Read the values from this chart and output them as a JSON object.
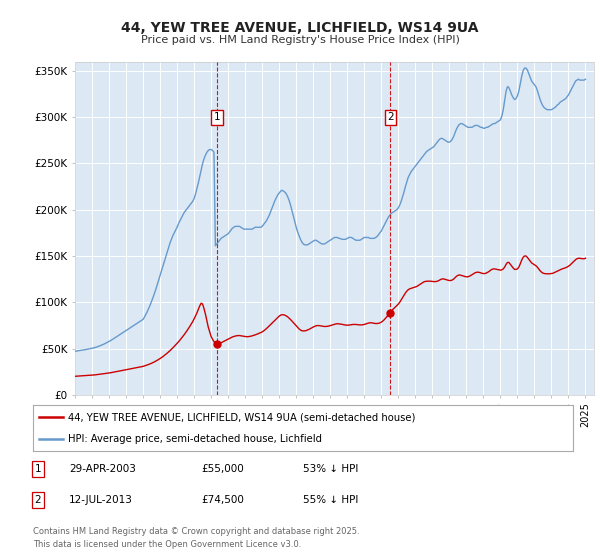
{
  "title": "44, YEW TREE AVENUE, LICHFIELD, WS14 9UA",
  "subtitle": "Price paid vs. HM Land Registry's House Price Index (HPI)",
  "ylim": [
    0,
    360000
  ],
  "yticks": [
    0,
    50000,
    100000,
    150000,
    200000,
    250000,
    300000,
    350000
  ],
  "ytick_labels": [
    "£0",
    "£50K",
    "£100K",
    "£150K",
    "£200K",
    "£250K",
    "£300K",
    "£350K"
  ],
  "background_color": "#ffffff",
  "plot_bg_color": "#dce9f5",
  "grid_color": "#ffffff",
  "purchase_dates": [
    2003.33,
    2013.54
  ],
  "purchase_prices": [
    55000,
    74500
  ],
  "purchase_labels": [
    "1",
    "2"
  ],
  "legend_line1": "44, YEW TREE AVENUE, LICHFIELD, WS14 9UA (semi-detached house)",
  "legend_line2": "HPI: Average price, semi-detached house, Lichfield",
  "line_red": "#cc0000",
  "line_blue": "#6699cc",
  "footer_line1": "Contains HM Land Registry data © Crown copyright and database right 2025.",
  "footer_line2": "This data is licensed under the Open Government Licence v3.0.",
  "table_rows": [
    {
      "label": "1",
      "date": "29-APR-2003",
      "price": "£55,000",
      "hpi": "53% ↓ HPI"
    },
    {
      "label": "2",
      "date": "12-JUL-2013",
      "price": "£74,500",
      "hpi": "55% ↓ HPI"
    }
  ],
  "hpi_years": [
    1995.0,
    1995.083,
    1995.167,
    1995.25,
    1995.333,
    1995.417,
    1995.5,
    1995.583,
    1995.667,
    1995.75,
    1995.833,
    1995.917,
    1996.0,
    1996.083,
    1996.167,
    1996.25,
    1996.333,
    1996.417,
    1996.5,
    1996.583,
    1996.667,
    1996.75,
    1996.833,
    1996.917,
    1997.0,
    1997.083,
    1997.167,
    1997.25,
    1997.333,
    1997.417,
    1997.5,
    1997.583,
    1997.667,
    1997.75,
    1997.833,
    1997.917,
    1998.0,
    1998.083,
    1998.167,
    1998.25,
    1998.333,
    1998.417,
    1998.5,
    1998.583,
    1998.667,
    1998.75,
    1998.833,
    1998.917,
    1999.0,
    1999.083,
    1999.167,
    1999.25,
    1999.333,
    1999.417,
    1999.5,
    1999.583,
    1999.667,
    1999.75,
    1999.833,
    1999.917,
    2000.0,
    2000.083,
    2000.167,
    2000.25,
    2000.333,
    2000.417,
    2000.5,
    2000.583,
    2000.667,
    2000.75,
    2000.833,
    2000.917,
    2001.0,
    2001.083,
    2001.167,
    2001.25,
    2001.333,
    2001.417,
    2001.5,
    2001.583,
    2001.667,
    2001.75,
    2001.833,
    2001.917,
    2002.0,
    2002.083,
    2002.167,
    2002.25,
    2002.333,
    2002.417,
    2002.5,
    2002.583,
    2002.667,
    2002.75,
    2002.833,
    2002.917,
    2003.0,
    2003.083,
    2003.167,
    2003.25,
    2003.333,
    2003.417,
    2003.5,
    2003.583,
    2003.667,
    2003.75,
    2003.833,
    2003.917,
    2004.0,
    2004.083,
    2004.167,
    2004.25,
    2004.333,
    2004.417,
    2004.5,
    2004.583,
    2004.667,
    2004.75,
    2004.833,
    2004.917,
    2005.0,
    2005.083,
    2005.167,
    2005.25,
    2005.333,
    2005.417,
    2005.5,
    2005.583,
    2005.667,
    2005.75,
    2005.833,
    2005.917,
    2006.0,
    2006.083,
    2006.167,
    2006.25,
    2006.333,
    2006.417,
    2006.5,
    2006.583,
    2006.667,
    2006.75,
    2006.833,
    2006.917,
    2007.0,
    2007.083,
    2007.167,
    2007.25,
    2007.333,
    2007.417,
    2007.5,
    2007.583,
    2007.667,
    2007.75,
    2007.833,
    2007.917,
    2008.0,
    2008.083,
    2008.167,
    2008.25,
    2008.333,
    2008.417,
    2008.5,
    2008.583,
    2008.667,
    2008.75,
    2008.833,
    2008.917,
    2009.0,
    2009.083,
    2009.167,
    2009.25,
    2009.333,
    2009.417,
    2009.5,
    2009.583,
    2009.667,
    2009.75,
    2009.833,
    2009.917,
    2010.0,
    2010.083,
    2010.167,
    2010.25,
    2010.333,
    2010.417,
    2010.5,
    2010.583,
    2010.667,
    2010.75,
    2010.833,
    2010.917,
    2011.0,
    2011.083,
    2011.167,
    2011.25,
    2011.333,
    2011.417,
    2011.5,
    2011.583,
    2011.667,
    2011.75,
    2011.833,
    2011.917,
    2012.0,
    2012.083,
    2012.167,
    2012.25,
    2012.333,
    2012.417,
    2012.5,
    2012.583,
    2012.667,
    2012.75,
    2012.833,
    2012.917,
    2013.0,
    2013.083,
    2013.167,
    2013.25,
    2013.333,
    2013.417,
    2013.5,
    2013.583,
    2013.667,
    2013.75,
    2013.833,
    2013.917,
    2014.0,
    2014.083,
    2014.167,
    2014.25,
    2014.333,
    2014.417,
    2014.5,
    2014.583,
    2014.667,
    2014.75,
    2014.833,
    2014.917,
    2015.0,
    2015.083,
    2015.167,
    2015.25,
    2015.333,
    2015.417,
    2015.5,
    2015.583,
    2015.667,
    2015.75,
    2015.833,
    2015.917,
    2016.0,
    2016.083,
    2016.167,
    2016.25,
    2016.333,
    2016.417,
    2016.5,
    2016.583,
    2016.667,
    2016.75,
    2016.833,
    2016.917,
    2017.0,
    2017.083,
    2017.167,
    2017.25,
    2017.333,
    2017.417,
    2017.5,
    2017.583,
    2017.667,
    2017.75,
    2017.833,
    2017.917,
    2018.0,
    2018.083,
    2018.167,
    2018.25,
    2018.333,
    2018.417,
    2018.5,
    2018.583,
    2018.667,
    2018.75,
    2018.833,
    2018.917,
    2019.0,
    2019.083,
    2019.167,
    2019.25,
    2019.333,
    2019.417,
    2019.5,
    2019.583,
    2019.667,
    2019.75,
    2019.833,
    2019.917,
    2020.0,
    2020.083,
    2020.167,
    2020.25,
    2020.333,
    2020.417,
    2020.5,
    2020.583,
    2020.667,
    2020.75,
    2020.833,
    2020.917,
    2021.0,
    2021.083,
    2021.167,
    2021.25,
    2021.333,
    2021.417,
    2021.5,
    2021.583,
    2021.667,
    2021.75,
    2021.833,
    2021.917,
    2022.0,
    2022.083,
    2022.167,
    2022.25,
    2022.333,
    2022.417,
    2022.5,
    2022.583,
    2022.667,
    2022.75,
    2022.833,
    2022.917,
    2023.0,
    2023.083,
    2023.167,
    2023.25,
    2023.333,
    2023.417,
    2023.5,
    2023.583,
    2023.667,
    2023.75,
    2023.833,
    2023.917,
    2024.0,
    2024.083,
    2024.167,
    2024.25,
    2024.333,
    2024.417,
    2024.5,
    2024.583,
    2024.667,
    2024.75,
    2024.833,
    2024.917,
    2025.0
  ],
  "hpi_prices": [
    47000,
    47200,
    47500,
    47800,
    48000,
    48200,
    48500,
    48700,
    49000,
    49300,
    49600,
    49900,
    50200,
    50600,
    51000,
    51500,
    52000,
    52600,
    53200,
    53800,
    54500,
    55200,
    56000,
    56800,
    57600,
    58500,
    59400,
    60400,
    61400,
    62500,
    63500,
    64500,
    65500,
    66500,
    67500,
    68500,
    69500,
    70500,
    71500,
    72500,
    73500,
    74500,
    75500,
    76500,
    77500,
    78500,
    79500,
    80500,
    81500,
    84000,
    87000,
    90000,
    93500,
    97000,
    101000,
    105000,
    109500,
    114000,
    119000,
    124000,
    129000,
    134000,
    139000,
    144000,
    149000,
    154000,
    159000,
    164000,
    168000,
    172000,
    175000,
    178000,
    181000,
    185000,
    188000,
    191000,
    194000,
    197000,
    199000,
    201000,
    203000,
    205000,
    207000,
    209000,
    212000,
    217000,
    223000,
    229000,
    236000,
    243000,
    250000,
    255000,
    259000,
    262000,
    264000,
    265000,
    265000,
    264000,
    262000,
    161000,
    163000,
    165000,
    167000,
    169000,
    170000,
    171000,
    172000,
    173000,
    174000,
    176000,
    178000,
    180000,
    181000,
    182000,
    182000,
    182000,
    182000,
    181000,
    180000,
    179000,
    179000,
    179000,
    179000,
    179000,
    179000,
    179000,
    180000,
    181000,
    181000,
    181000,
    181000,
    181000,
    182000,
    184000,
    186000,
    188000,
    191000,
    194000,
    198000,
    202000,
    206000,
    210000,
    213000,
    216000,
    218000,
    220000,
    221000,
    220000,
    219000,
    217000,
    214000,
    210000,
    205000,
    199000,
    193000,
    187000,
    181000,
    176000,
    172000,
    168000,
    165000,
    163000,
    162000,
    162000,
    162000,
    163000,
    164000,
    165000,
    166000,
    167000,
    167000,
    166000,
    165000,
    164000,
    163000,
    163000,
    163000,
    164000,
    165000,
    166000,
    167000,
    168000,
    169000,
    170000,
    170000,
    170000,
    169000,
    169000,
    168000,
    168000,
    168000,
    168000,
    169000,
    170000,
    170000,
    170000,
    169000,
    168000,
    167000,
    167000,
    167000,
    167000,
    168000,
    169000,
    170000,
    170000,
    170000,
    170000,
    169000,
    169000,
    169000,
    169000,
    170000,
    171000,
    173000,
    175000,
    177000,
    180000,
    183000,
    186000,
    189000,
    192000,
    194000,
    196000,
    197000,
    198000,
    199000,
    200000,
    202000,
    205000,
    209000,
    214000,
    219000,
    225000,
    230000,
    235000,
    238000,
    241000,
    243000,
    245000,
    247000,
    249000,
    251000,
    253000,
    255000,
    257000,
    259000,
    261000,
    263000,
    264000,
    265000,
    266000,
    267000,
    268000,
    270000,
    272000,
    274000,
    276000,
    277000,
    277000,
    276000,
    275000,
    274000,
    273000,
    273000,
    274000,
    276000,
    279000,
    283000,
    287000,
    290000,
    292000,
    293000,
    293000,
    292000,
    291000,
    290000,
    289000,
    289000,
    289000,
    289000,
    290000,
    291000,
    291000,
    291000,
    290000,
    289000,
    289000,
    288000,
    288000,
    289000,
    289000,
    290000,
    291000,
    292000,
    293000,
    293000,
    294000,
    295000,
    296000,
    297000,
    301000,
    308000,
    318000,
    328000,
    333000,
    332000,
    328000,
    324000,
    321000,
    319000,
    320000,
    323000,
    328000,
    336000,
    344000,
    350000,
    353000,
    353000,
    351000,
    347000,
    343000,
    339000,
    337000,
    335000,
    333000,
    329000,
    324000,
    319000,
    315000,
    312000,
    310000,
    309000,
    308000,
    308000,
    308000,
    308000,
    309000,
    310000,
    311000,
    313000,
    314000,
    316000,
    317000,
    318000,
    319000,
    320000,
    322000,
    324000,
    327000,
    330000,
    333000,
    336000,
    339000,
    340000,
    341000,
    340000,
    340000,
    340000,
    340000,
    341000
  ],
  "red_years": [
    1995.0,
    1995.083,
    1995.167,
    1995.25,
    1995.333,
    1995.417,
    1995.5,
    1995.583,
    1995.667,
    1995.75,
    1995.833,
    1995.917,
    1996.0,
    1996.083,
    1996.167,
    1996.25,
    1996.333,
    1996.417,
    1996.5,
    1996.583,
    1996.667,
    1996.75,
    1996.833,
    1996.917,
    1997.0,
    1997.083,
    1997.167,
    1997.25,
    1997.333,
    1997.417,
    1997.5,
    1997.583,
    1997.667,
    1997.75,
    1997.833,
    1997.917,
    1998.0,
    1998.083,
    1998.167,
    1998.25,
    1998.333,
    1998.417,
    1998.5,
    1998.583,
    1998.667,
    1998.75,
    1998.833,
    1998.917,
    1999.0,
    1999.083,
    1999.167,
    1999.25,
    1999.333,
    1999.417,
    1999.5,
    1999.583,
    1999.667,
    1999.75,
    1999.833,
    1999.917,
    2000.0,
    2000.083,
    2000.167,
    2000.25,
    2000.333,
    2000.417,
    2000.5,
    2000.583,
    2000.667,
    2000.75,
    2000.833,
    2000.917,
    2001.0,
    2001.083,
    2001.167,
    2001.25,
    2001.333,
    2001.417,
    2001.5,
    2001.583,
    2001.667,
    2001.75,
    2001.833,
    2001.917,
    2002.0,
    2002.083,
    2002.167,
    2002.25,
    2002.333,
    2002.417,
    2002.5,
    2002.583,
    2002.667,
    2002.75,
    2002.833,
    2002.917,
    2003.0,
    2003.083,
    2003.167,
    2003.25,
    2003.333,
    2003.417,
    2003.5,
    2003.583,
    2003.667,
    2003.75,
    2003.833,
    2003.917,
    2004.0,
    2004.083,
    2004.167,
    2004.25,
    2004.333,
    2004.417,
    2004.5,
    2004.583,
    2004.667,
    2004.75,
    2004.833,
    2004.917,
    2005.0,
    2005.083,
    2005.167,
    2005.25,
    2005.333,
    2005.417,
    2005.5,
    2005.583,
    2005.667,
    2005.75,
    2005.833,
    2005.917,
    2006.0,
    2006.083,
    2006.167,
    2006.25,
    2006.333,
    2006.417,
    2006.5,
    2006.583,
    2006.667,
    2006.75,
    2006.833,
    2006.917,
    2007.0,
    2007.083,
    2007.167,
    2007.25,
    2007.333,
    2007.417,
    2007.5,
    2007.583,
    2007.667,
    2007.75,
    2007.833,
    2007.917,
    2008.0,
    2008.083,
    2008.167,
    2008.25,
    2008.333,
    2008.417,
    2008.5,
    2008.583,
    2008.667,
    2008.75,
    2008.833,
    2008.917,
    2009.0,
    2009.083,
    2009.167,
    2009.25,
    2009.333,
    2009.417,
    2009.5,
    2009.583,
    2009.667,
    2009.75,
    2009.833,
    2009.917,
    2010.0,
    2010.083,
    2010.167,
    2010.25,
    2010.333,
    2010.417,
    2010.5,
    2010.583,
    2010.667,
    2010.75,
    2010.833,
    2010.917,
    2011.0,
    2011.083,
    2011.167,
    2011.25,
    2011.333,
    2011.417,
    2011.5,
    2011.583,
    2011.667,
    2011.75,
    2011.833,
    2011.917,
    2012.0,
    2012.083,
    2012.167,
    2012.25,
    2012.333,
    2012.417,
    2012.5,
    2012.583,
    2012.667,
    2012.75,
    2012.833,
    2012.917,
    2013.0,
    2013.083,
    2013.167,
    2013.25,
    2013.333,
    2013.417,
    2013.5,
    2013.583,
    2013.667,
    2013.75,
    2013.833,
    2013.917,
    2014.0,
    2014.083,
    2014.167,
    2014.25,
    2014.333,
    2014.417,
    2014.5,
    2014.583,
    2014.667,
    2014.75,
    2014.833,
    2014.917,
    2015.0,
    2015.083,
    2015.167,
    2015.25,
    2015.333,
    2015.417,
    2015.5,
    2015.583,
    2015.667,
    2015.75,
    2015.833,
    2015.917,
    2016.0,
    2016.083,
    2016.167,
    2016.25,
    2016.333,
    2016.417,
    2016.5,
    2016.583,
    2016.667,
    2016.75,
    2016.833,
    2016.917,
    2017.0,
    2017.083,
    2017.167,
    2017.25,
    2017.333,
    2017.417,
    2017.5,
    2017.583,
    2017.667,
    2017.75,
    2017.833,
    2017.917,
    2018.0,
    2018.083,
    2018.167,
    2018.25,
    2018.333,
    2018.417,
    2018.5,
    2018.583,
    2018.667,
    2018.75,
    2018.833,
    2018.917,
    2019.0,
    2019.083,
    2019.167,
    2019.25,
    2019.333,
    2019.417,
    2019.5,
    2019.583,
    2019.667,
    2019.75,
    2019.833,
    2019.917,
    2020.0,
    2020.083,
    2020.167,
    2020.25,
    2020.333,
    2020.417,
    2020.5,
    2020.583,
    2020.667,
    2020.75,
    2020.833,
    2020.917,
    2021.0,
    2021.083,
    2021.167,
    2021.25,
    2021.333,
    2021.417,
    2021.5,
    2021.583,
    2021.667,
    2021.75,
    2021.833,
    2021.917,
    2022.0,
    2022.083,
    2022.167,
    2022.25,
    2022.333,
    2022.417,
    2022.5,
    2022.583,
    2022.667,
    2022.75,
    2022.833,
    2022.917,
    2023.0,
    2023.083,
    2023.167,
    2023.25,
    2023.333,
    2023.417,
    2023.5,
    2023.583,
    2023.667,
    2023.75,
    2023.833,
    2023.917,
    2024.0,
    2024.083,
    2024.167,
    2024.25,
    2024.333,
    2024.417,
    2024.5,
    2024.583,
    2024.667,
    2024.75,
    2024.833,
    2024.917,
    2025.0
  ],
  "red_prices": [
    20000,
    20100,
    20200,
    20300,
    20400,
    20500,
    20600,
    20700,
    20800,
    20900,
    21000,
    21100,
    21200,
    21300,
    21500,
    21700,
    21900,
    22100,
    22300,
    22500,
    22700,
    22900,
    23100,
    23300,
    23500,
    23800,
    24100,
    24400,
    24700,
    25000,
    25300,
    25600,
    25900,
    26200,
    26500,
    26800,
    27100,
    27400,
    27700,
    28000,
    28300,
    28600,
    28900,
    29200,
    29500,
    29800,
    30100,
    30400,
    30700,
    31200,
    31700,
    32200,
    32800,
    33400,
    34100,
    34800,
    35600,
    36400,
    37300,
    38200,
    39200,
    40200,
    41300,
    42500,
    43700,
    45000,
    46300,
    47700,
    49200,
    50700,
    52300,
    53900,
    55600,
    57300,
    59100,
    61000,
    63000,
    65000,
    67100,
    69300,
    71600,
    74000,
    76500,
    79100,
    82000,
    85200,
    88600,
    92300,
    96200,
    99000,
    98000,
    93000,
    87000,
    80000,
    73000,
    68000,
    63000,
    60000,
    57500,
    55500,
    55000,
    55300,
    55700,
    56200,
    57000,
    57800,
    58600,
    59400,
    60200,
    61000,
    61800,
    62500,
    63000,
    63500,
    63800,
    64000,
    64000,
    63800,
    63500,
    63200,
    63000,
    62800,
    62800,
    63000,
    63300,
    63700,
    64200,
    64700,
    65300,
    65900,
    66500,
    67200,
    68000,
    69000,
    70200,
    71500,
    73000,
    74500,
    76000,
    77500,
    79000,
    80500,
    82000,
    83500,
    85000,
    86000,
    86500,
    86500,
    86000,
    85200,
    84200,
    82800,
    81300,
    79700,
    78000,
    76300,
    74500,
    72800,
    71200,
    70000,
    69200,
    69000,
    69100,
    69400,
    70000,
    70700,
    71500,
    72300,
    73200,
    74000,
    74500,
    74800,
    74800,
    74500,
    74200,
    74000,
    73800,
    73800,
    74000,
    74300,
    74700,
    75200,
    75700,
    76200,
    76600,
    76800,
    76700,
    76500,
    76200,
    75800,
    75500,
    75300,
    75200,
    75300,
    75500,
    75800,
    76000,
    76000,
    76000,
    75800,
    75600,
    75500,
    75500,
    75700,
    76000,
    76500,
    77000,
    77500,
    77800,
    77800,
    77500,
    77200,
    77000,
    77000,
    77200,
    77700,
    78500,
    79600,
    81000,
    82700,
    84600,
    86600,
    88500,
    90300,
    92000,
    93500,
    95000,
    96500,
    98000,
    100000,
    102500,
    105000,
    107500,
    110000,
    112000,
    113500,
    114500,
    115000,
    115500,
    116000,
    116500,
    117000,
    118000,
    119000,
    120000,
    121000,
    122000,
    122500,
    122700,
    122800,
    122800,
    122700,
    122500,
    122300,
    122300,
    122500,
    123000,
    123800,
    124700,
    125200,
    125200,
    124800,
    124300,
    123800,
    123500,
    123500,
    124000,
    125000,
    126500,
    128000,
    129000,
    129500,
    129200,
    128700,
    128200,
    127800,
    127500,
    127500,
    128000,
    128800,
    129800,
    130800,
    131700,
    132300,
    132500,
    132300,
    131800,
    131300,
    131000,
    131000,
    131500,
    132300,
    133300,
    134500,
    135500,
    136000,
    136000,
    135700,
    135300,
    135000,
    134700,
    135000,
    136000,
    138000,
    141000,
    143000,
    143000,
    141000,
    139000,
    137000,
    135500,
    135500,
    136000,
    138000,
    141500,
    145500,
    148500,
    150000,
    150000,
    148500,
    146500,
    144500,
    142500,
    141500,
    140500,
    139500,
    138000,
    136000,
    134000,
    132500,
    131500,
    131000,
    130800,
    130700,
    130700,
    130800,
    131000,
    131300,
    132000,
    132700,
    133500,
    134200,
    135000,
    135700,
    136300,
    136800,
    137300,
    138000,
    139000,
    140000,
    141500,
    143000,
    144500,
    146000,
    147000,
    147500,
    147500,
    147200,
    147000,
    147000,
    147500
  ],
  "xtick_years": [
    1995,
    1996,
    1997,
    1998,
    1999,
    2000,
    2001,
    2002,
    2003,
    2004,
    2005,
    2006,
    2007,
    2008,
    2009,
    2010,
    2011,
    2012,
    2013,
    2014,
    2015,
    2016,
    2017,
    2018,
    2019,
    2020,
    2021,
    2022,
    2023,
    2024,
    2025
  ]
}
